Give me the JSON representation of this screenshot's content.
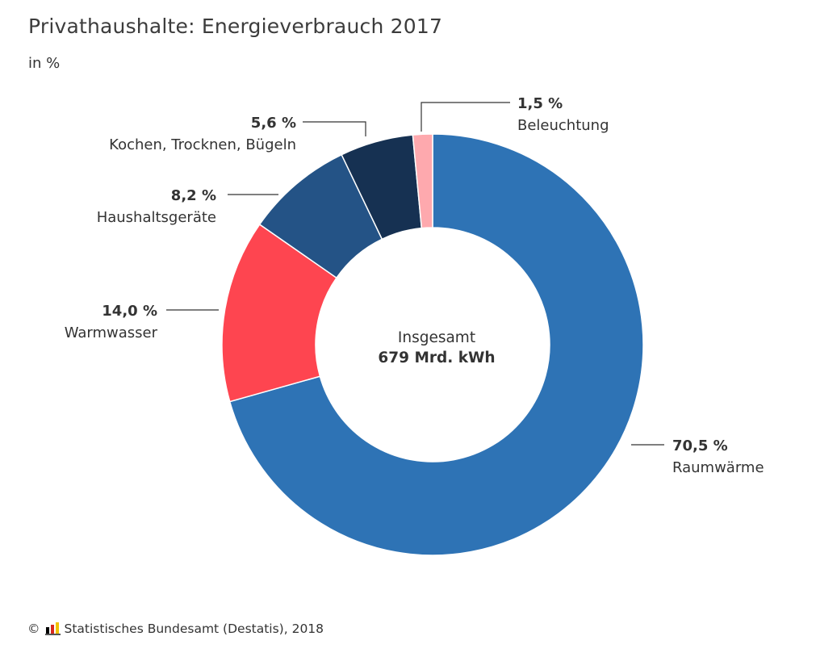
{
  "title": "Privathaushalte: Energieverbrauch 2017",
  "subtitle": "in %",
  "chart_data": {
    "type": "pie",
    "variant": "donut",
    "title": "Privathaushalte: Energieverbrauch 2017",
    "unit": "in %",
    "center_label": "Insgesamt",
    "center_value": "679 Mrd. kWh",
    "slices": [
      {
        "label": "Raumwärme",
        "value": 70.5,
        "value_label": "70,5 %",
        "color": "#2e73b5"
      },
      {
        "label": "Warmwasser",
        "value": 14.0,
        "value_label": "14,0 %",
        "color": "#fe4550"
      },
      {
        "label": "Haushaltsgeräte",
        "value": 8.2,
        "value_label": "8,2 %",
        "color": "#245386"
      },
      {
        "label": "Kochen, Trocknen, Bügeln",
        "value": 5.6,
        "value_label": "5,6 %",
        "color": "#163152"
      },
      {
        "label": "Beleuchtung",
        "value": 1.5,
        "value_label": "1,5 %",
        "color": "#fea9ae"
      }
    ],
    "order": "Raumwärme clockwise from top, remaining slices continue clockwise"
  },
  "footer": {
    "copyright_symbol": "©",
    "source": "Statistisches Bundesamt (Destatis), 2018",
    "logo_icon": "destatis-logo-icon"
  }
}
